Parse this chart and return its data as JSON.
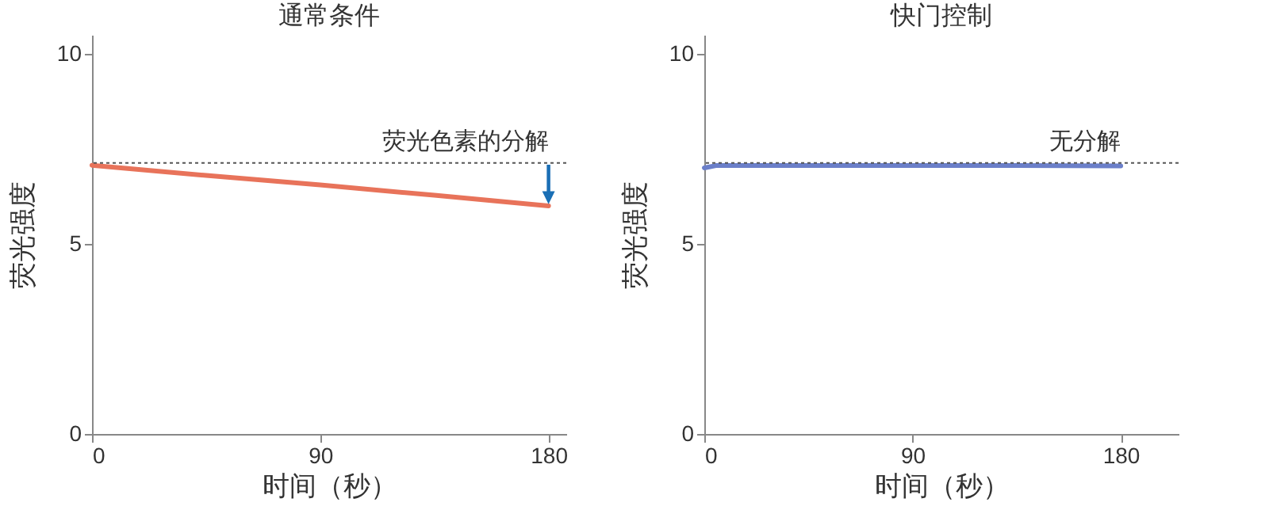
{
  "chart_data": [
    {
      "type": "line",
      "title": "通常条件",
      "xlabel": "时间（秒）",
      "ylabel": "荧光强度",
      "x": [
        0,
        45,
        90,
        135,
        180
      ],
      "series": [
        {
          "color": "#e8735a",
          "values": [
            7.07,
            6.8,
            6.55,
            6.28,
            6.0
          ]
        }
      ],
      "xlim": [
        0,
        187
      ],
      "xticks": [
        0,
        90,
        180
      ],
      "ylim": [
        0,
        10.5
      ],
      "yticks": [
        0,
        5,
        10
      ],
      "ref_lines": [
        {
          "axis": "y",
          "value": 7.13,
          "color": "#555555",
          "line_style": "dotted"
        }
      ],
      "annotations": [
        {
          "text": "荧光色素的分解",
          "x": 180,
          "y": 7.13
        }
      ]
    },
    {
      "type": "line",
      "title": "快门控制",
      "xlabel": "时间（秒）",
      "ylabel": "荧光强度",
      "x": [
        0,
        5,
        45,
        90,
        135,
        180
      ],
      "series": [
        {
          "color": "#6b7fc9",
          "values": [
            7.0,
            7.06,
            7.06,
            7.06,
            7.06,
            7.05
          ]
        }
      ],
      "xlim": [
        0,
        205
      ],
      "xticks": [
        0,
        90,
        180
      ],
      "ylim": [
        0,
        10.5
      ],
      "yticks": [
        0,
        5,
        10
      ],
      "ref_lines": [
        {
          "axis": "y",
          "value": 7.13,
          "color": "#555555",
          "line_style": "dotted"
        }
      ],
      "annotations": [
        {
          "text": "无分解",
          "x": 180,
          "y": 7.13
        }
      ]
    }
  ]
}
